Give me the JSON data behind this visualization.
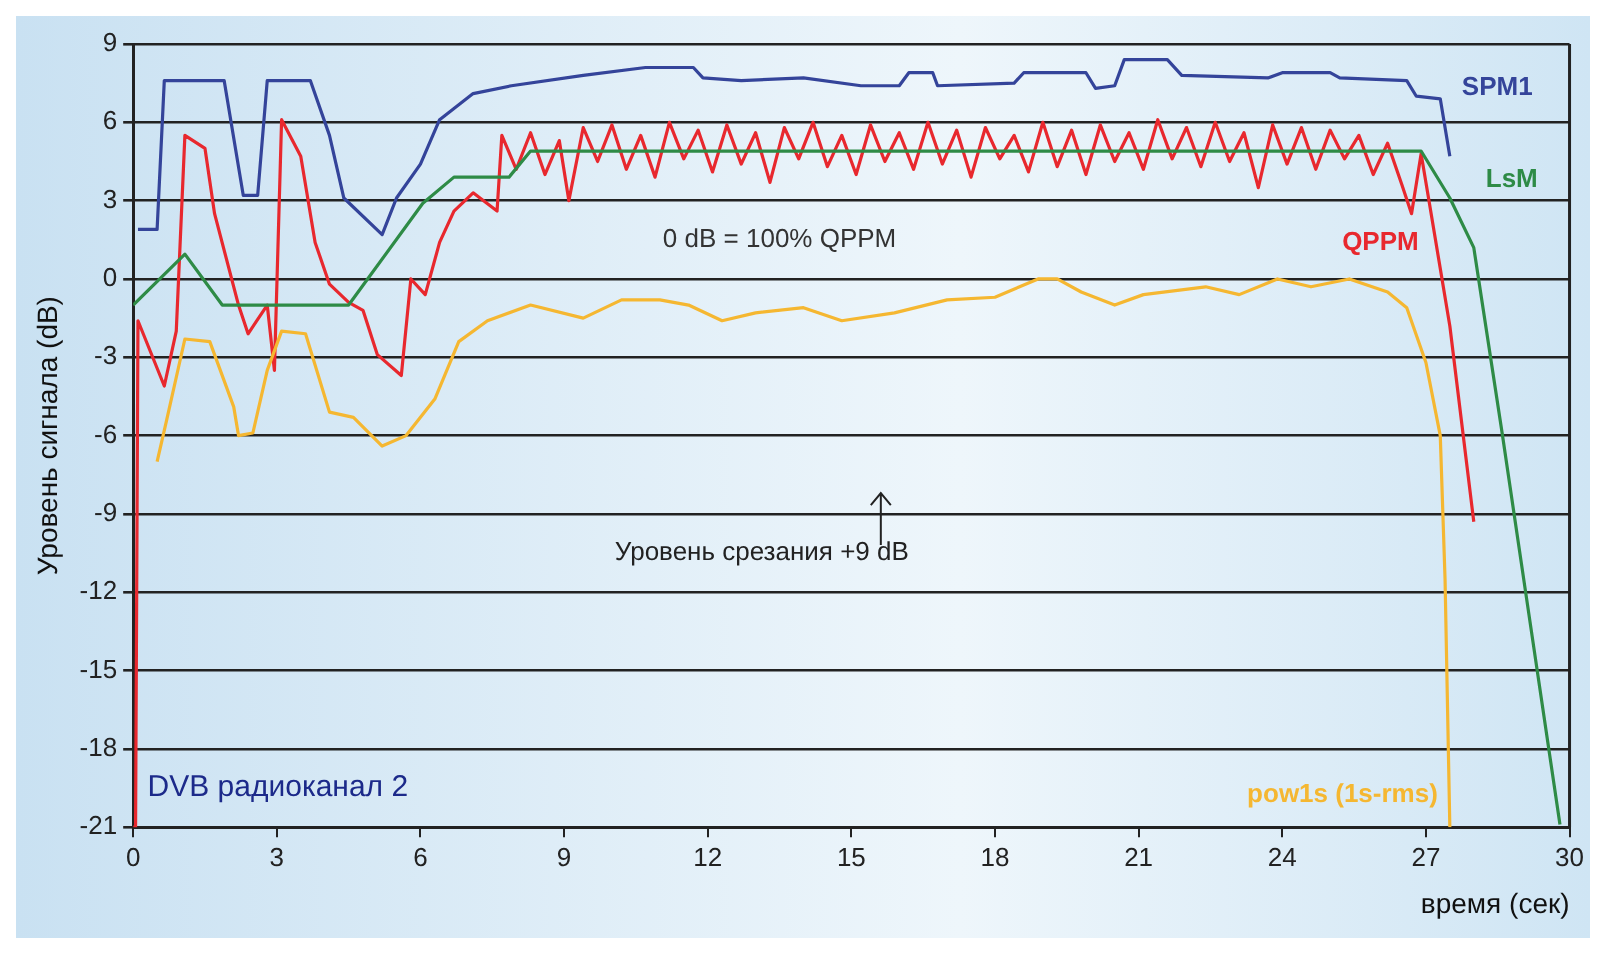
{
  "chart_data": {
    "type": "line",
    "xlabel": "время (сек)",
    "ylabel": "Уровень сигнала (dB)",
    "xlim": [
      0,
      30
    ],
    "xticks": [
      0,
      3,
      6,
      9,
      12,
      15,
      18,
      21,
      24,
      27,
      30
    ],
    "ylim": [
      -21,
      9
    ],
    "yticks": [
      -21,
      -18,
      -15,
      -12,
      -9,
      -6,
      -3,
      0,
      3,
      6,
      9
    ],
    "grid": "y",
    "legend": false,
    "marker": "none",
    "line_style": "solid",
    "series": [
      {
        "name": "pow1s (1s-rms)",
        "color": "#f5b731",
        "x": [
          0.5,
          0.7,
          1.08,
          1.6,
          2.1,
          2.2,
          2.5,
          2.8,
          3.1,
          3.6,
          4.1,
          4.6,
          5.2,
          5.7,
          6.3,
          6.8,
          7.4,
          8.3,
          9.4,
          10.2,
          11.0,
          11.6,
          12.3,
          13.0,
          14.0,
          14.8,
          15.9,
          17.0,
          18.0,
          18.9,
          19.3,
          19.8,
          20.5,
          21.1,
          22.4,
          23.1,
          23.9,
          24.6,
          25.4,
          26.2,
          26.6,
          27.0,
          27.3,
          27.4,
          27.5
        ],
        "values": [
          -7,
          -5.4,
          -2.3,
          -2.4,
          -4.9,
          -6,
          -5.9,
          -3.5,
          -2,
          -2.1,
          -5.1,
          -5.3,
          -6.4,
          -6,
          -4.6,
          -2.4,
          -1.6,
          -1,
          -1.5,
          -0.8,
          -0.8,
          -1,
          -1.6,
          -1.3,
          -1.1,
          -1.6,
          -1.3,
          -0.8,
          -0.7,
          0,
          0,
          -0.5,
          -1,
          -0.6,
          -0.3,
          -0.6,
          0,
          -0.3,
          0,
          -0.5,
          -1.1,
          -3.2,
          -6,
          -11.5,
          -21
        ]
      },
      {
        "name": "LsM",
        "color": "#2e8b46",
        "x": [
          0,
          1.08,
          1.86,
          4.5,
          6.05,
          6.7,
          7.85,
          8.3,
          26.9,
          27.5,
          28.0,
          28.6,
          29.8
        ],
        "values": [
          -1,
          0.95,
          -1,
          -1,
          2.9,
          3.9,
          3.9,
          4.9,
          4.9,
          3.1,
          1.2,
          -6,
          -20.9
        ]
      },
      {
        "name": "SPM1",
        "color": "#34449a",
        "x": [
          0.1,
          0.5,
          0.65,
          1.9,
          2.3,
          2.6,
          2.8,
          3.7,
          4.1,
          4.4,
          5.2,
          5.5,
          6.0,
          6.4,
          7.1,
          7.9,
          9.4,
          10.7,
          11.7,
          11.9,
          12.7,
          14.0,
          15.2,
          16.0,
          16.2,
          16.7,
          16.8,
          18.4,
          18.6,
          19.9,
          20.1,
          20.5,
          20.7,
          21.6,
          21.9,
          23.7,
          24.0,
          25.0,
          25.2,
          26.6,
          26.8,
          27.3,
          27.5
        ],
        "values": [
          1.9,
          1.9,
          7.6,
          7.6,
          3.2,
          3.2,
          7.6,
          7.6,
          5.5,
          3.1,
          1.7,
          3.1,
          4.4,
          6.1,
          7.1,
          7.4,
          7.8,
          8.1,
          8.1,
          7.7,
          7.6,
          7.7,
          7.4,
          7.4,
          7.9,
          7.9,
          7.4,
          7.5,
          7.9,
          7.9,
          7.3,
          7.4,
          8.4,
          8.4,
          7.8,
          7.7,
          7.9,
          7.9,
          7.7,
          7.6,
          7,
          6.9,
          4.7
        ]
      },
      {
        "name": "QPPM",
        "color": "#e8282e",
        "x": [
          0,
          0.05,
          0.1,
          0.65,
          0.9,
          1.08,
          1.5,
          1.7,
          2.2,
          2.4,
          2.8,
          2.95,
          3.1,
          3.5,
          3.8,
          4.1,
          4.5,
          4.8,
          5.1,
          5.6,
          5.8,
          6.1,
          6.4,
          6.7,
          7.1,
          7.6,
          7.7,
          8.0,
          8.3,
          8.6,
          8.9,
          9.1,
          9.4,
          9.7,
          10.0,
          10.3,
          10.6,
          10.9,
          11.2,
          11.5,
          11.8,
          12.1,
          12.4,
          12.7,
          13.0,
          13.3,
          13.6,
          13.9,
          14.2,
          14.5,
          14.8,
          15.1,
          15.4,
          15.7,
          16.0,
          16.3,
          16.6,
          16.9,
          17.2,
          17.5,
          17.8,
          18.1,
          18.4,
          18.7,
          19.0,
          19.3,
          19.6,
          19.9,
          20.2,
          20.5,
          20.8,
          21.1,
          21.4,
          21.7,
          22.0,
          22.3,
          22.6,
          22.9,
          23.2,
          23.5,
          23.8,
          24.1,
          24.4,
          24.7,
          25.0,
          25.3,
          25.6,
          25.9,
          26.2,
          26.5,
          26.7,
          26.9,
          27.1,
          27.5,
          28.0
        ],
        "values": [
          -21,
          -21,
          -1.6,
          -4.1,
          -2,
          5.5,
          5,
          2.5,
          -1,
          -2.1,
          -1,
          -3.5,
          6.1,
          4.7,
          1.4,
          -0.2,
          -0.9,
          -1.2,
          -2.9,
          -3.7,
          0,
          -0.6,
          1.4,
          2.6,
          3.3,
          2.6,
          5.5,
          4.2,
          5.6,
          4,
          5.3,
          3,
          5.8,
          4.5,
          5.9,
          4.2,
          5.5,
          3.9,
          6,
          4.6,
          5.7,
          4.1,
          5.9,
          4.4,
          5.6,
          3.7,
          5.8,
          4.6,
          6,
          4.3,
          5.5,
          4,
          5.9,
          4.5,
          5.6,
          4.2,
          6,
          4.4,
          5.7,
          3.9,
          5.8,
          4.6,
          5.5,
          4.1,
          6,
          4.3,
          5.7,
          4,
          5.9,
          4.5,
          5.6,
          4.2,
          6.1,
          4.6,
          5.8,
          4.3,
          6,
          4.5,
          5.6,
          3.5,
          5.9,
          4.4,
          5.8,
          4.2,
          5.7,
          4.6,
          5.5,
          4,
          5.2,
          3.6,
          2.5,
          4.8,
          2.6,
          -1.8,
          -9.3
        ]
      }
    ],
    "annotations": [
      "0 dB = 100% QPPM",
      "Уровень срезания +9 dB",
      "DVB радиоканал 2"
    ]
  }
}
